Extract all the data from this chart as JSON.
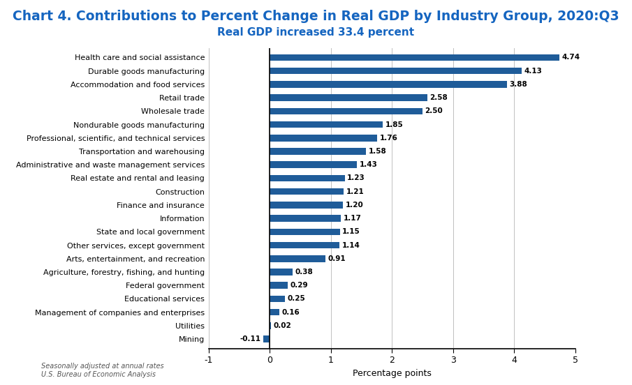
{
  "title": "Chart 4. Contributions to Percent Change in Real GDP by Industry Group, 2020:Q3",
  "subtitle": "Real GDP increased 33.4 percent",
  "xlabel": "Percentage points",
  "footnote1": "Seasonally adjusted at annual rates",
  "footnote2": "U.S. Bureau of Economic Analysis",
  "categories": [
    "Mining",
    "Utilities",
    "Management of companies and enterprises",
    "Educational services",
    "Federal government",
    "Agriculture, forestry, fishing, and hunting",
    "Arts, entertainment, and recreation",
    "Other services, except government",
    "State and local government",
    "Information",
    "Finance and insurance",
    "Construction",
    "Real estate and rental and leasing",
    "Administrative and waste management services",
    "Transportation and warehousing",
    "Professional, scientific, and technical services",
    "Nondurable goods manufacturing",
    "Wholesale trade",
    "Retail trade",
    "Accommodation and food services",
    "Durable goods manufacturing",
    "Health care and social assistance"
  ],
  "values": [
    -0.11,
    0.02,
    0.16,
    0.25,
    0.29,
    0.38,
    0.91,
    1.14,
    1.15,
    1.17,
    1.2,
    1.21,
    1.23,
    1.43,
    1.58,
    1.76,
    1.85,
    2.5,
    2.58,
    3.88,
    4.13,
    4.74
  ],
  "bar_color": "#1F5C99",
  "xlim": [
    -1,
    5
  ],
  "xticks": [
    -1,
    0,
    1,
    2,
    3,
    4,
    5
  ],
  "title_color": "#1565C0",
  "subtitle_color": "#1565C0",
  "title_fontsize": 13.5,
  "subtitle_fontsize": 11,
  "label_fontsize": 8.0,
  "value_fontsize": 7.5,
  "footnote_fontsize": 7.0,
  "xlabel_fontsize": 9,
  "bar_height": 0.5
}
